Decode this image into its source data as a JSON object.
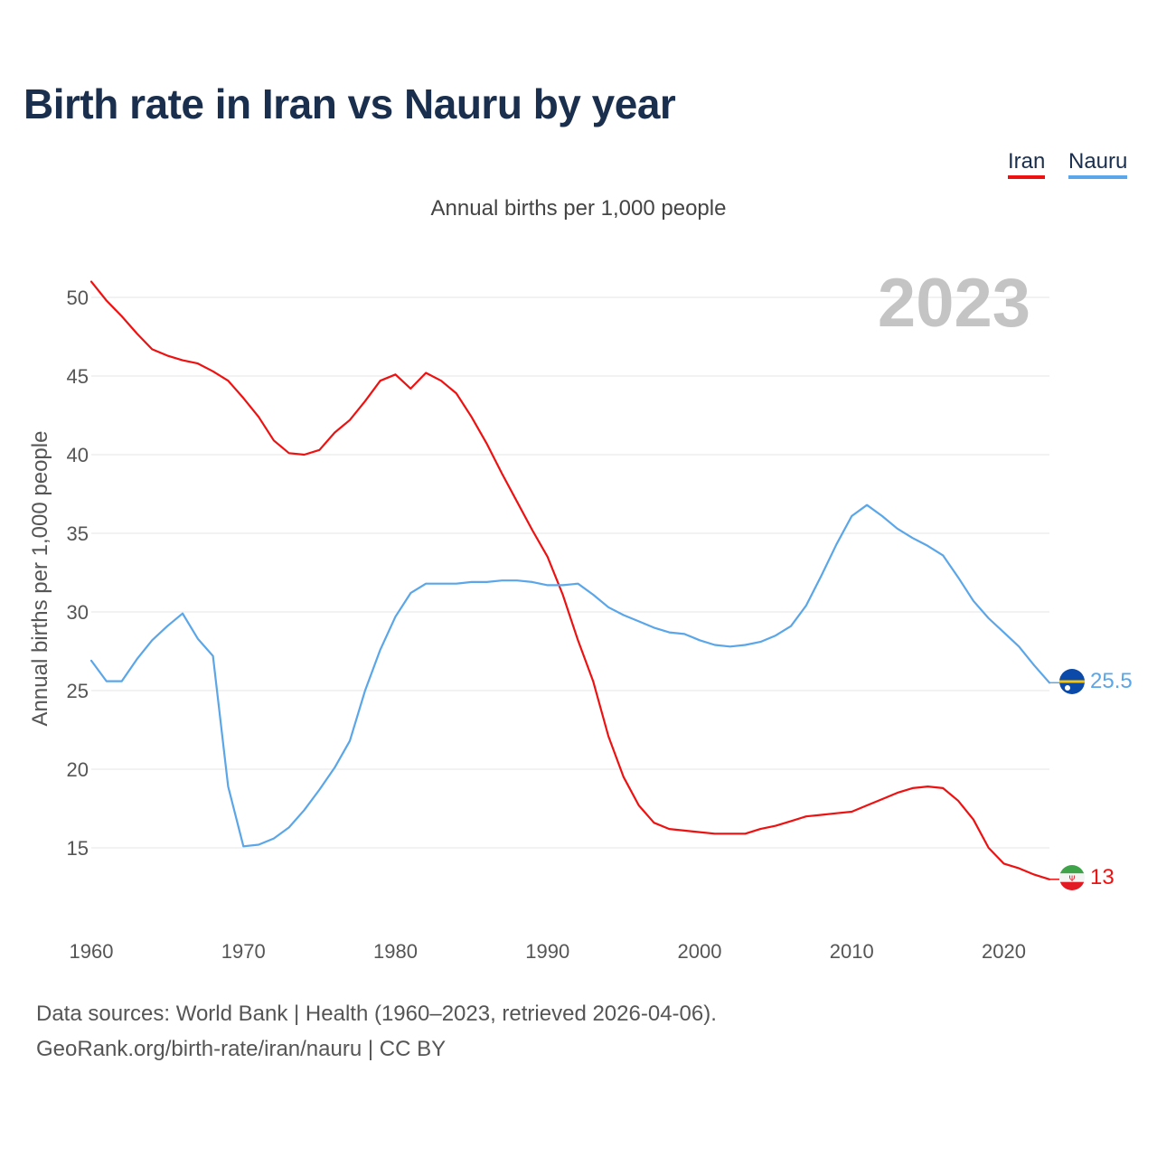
{
  "title": "Birth rate in Iran vs Nauru by year",
  "subtitle": "Annual births per 1,000 people",
  "year_label": "2023",
  "legend": [
    {
      "name": "Iran",
      "color": "#ee1111"
    },
    {
      "name": "Nauru",
      "color": "#5aa6e8"
    }
  ],
  "source": {
    "line1": "Data sources: World Bank | Health (1960–2023, retrieved 2026-04-06).",
    "line2": "GeoRank.org/birth-rate/iran/nauru | CC BY"
  },
  "chart_data": {
    "type": "line",
    "title": "Birth rate in Iran vs Nauru by year",
    "xlabel": "",
    "ylabel": "Annual births per 1,000 people",
    "xlim": [
      1960,
      2023
    ],
    "ylim": [
      10.5,
      52.5
    ],
    "x_ticks": [
      1960,
      1970,
      1980,
      1990,
      2000,
      2010,
      2020
    ],
    "y_ticks": [
      15,
      20,
      25,
      30,
      35,
      40,
      45,
      50
    ],
    "grid": true,
    "legend_position": "top-right",
    "x": [
      1960,
      1961,
      1962,
      1963,
      1964,
      1965,
      1966,
      1967,
      1968,
      1969,
      1970,
      1971,
      1972,
      1973,
      1974,
      1975,
      1976,
      1977,
      1978,
      1979,
      1980,
      1981,
      1982,
      1983,
      1984,
      1985,
      1986,
      1987,
      1988,
      1989,
      1990,
      1991,
      1992,
      1993,
      1994,
      1995,
      1996,
      1997,
      1998,
      1999,
      2000,
      2001,
      2002,
      2003,
      2004,
      2005,
      2006,
      2007,
      2008,
      2009,
      2010,
      2011,
      2012,
      2013,
      2014,
      2015,
      2016,
      2017,
      2018,
      2019,
      2020,
      2021,
      2022,
      2023
    ],
    "series": [
      {
        "name": "Iran",
        "color": "#ee1111",
        "end_label": "13",
        "values": [
          51.0,
          49.8,
          48.8,
          47.7,
          46.7,
          46.3,
          46.0,
          45.8,
          45.3,
          44.7,
          43.6,
          42.4,
          40.9,
          40.1,
          40.0,
          40.3,
          41.4,
          42.2,
          43.4,
          44.7,
          45.1,
          44.2,
          45.2,
          44.7,
          43.9,
          42.4,
          40.7,
          38.8,
          37.0,
          35.2,
          33.5,
          31.1,
          28.2,
          25.6,
          22.1,
          19.5,
          17.7,
          16.6,
          16.2,
          16.1,
          16.0,
          15.9,
          15.9,
          15.9,
          16.2,
          16.4,
          16.7,
          17.0,
          17.1,
          17.2,
          17.3,
          17.7,
          18.1,
          18.5,
          18.8,
          18.9,
          18.8,
          18.0,
          16.8,
          15.0,
          14.0,
          13.7,
          13.3,
          13.0
        ]
      },
      {
        "name": "Nauru",
        "color": "#5aa6e8",
        "end_label": "25.5",
        "values": [
          26.9,
          25.6,
          25.6,
          27.0,
          28.2,
          29.1,
          29.9,
          28.3,
          27.2,
          18.9,
          15.1,
          15.2,
          15.6,
          16.3,
          17.4,
          18.7,
          20.1,
          21.8,
          25.0,
          27.6,
          29.7,
          31.2,
          31.8,
          31.8,
          31.8,
          31.9,
          31.9,
          32.0,
          32.0,
          31.9,
          31.7,
          31.7,
          31.8,
          31.1,
          30.3,
          29.8,
          29.4,
          29.0,
          28.7,
          28.6,
          28.2,
          27.9,
          27.8,
          27.9,
          28.1,
          28.5,
          29.1,
          30.4,
          32.3,
          34.3,
          36.1,
          36.8,
          36.1,
          35.3,
          34.7,
          34.2,
          33.6,
          32.2,
          30.7,
          29.6,
          28.7,
          27.8,
          26.6,
          25.5
        ]
      }
    ]
  }
}
